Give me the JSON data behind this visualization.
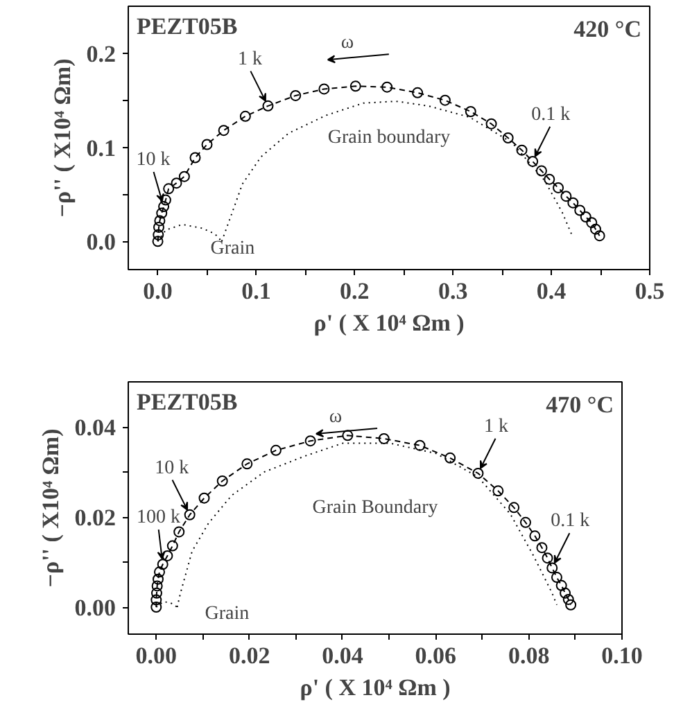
{
  "chart_data": [
    {
      "type": "line",
      "title": "PEZT05B",
      "subtitle": "420 °C",
      "xlabel": "ρ' ( X 10⁴ Ωm )",
      "ylabel": "−ρ'' ( X10⁴ Ωm)",
      "xlim": [
        -0.03,
        0.5
      ],
      "ylim": [
        -0.03,
        0.25
      ],
      "xticks": [
        {
          "value": 0,
          "label": "0.0"
        },
        {
          "value": 0.05,
          "label": null
        },
        0.1,
        {
          "value": 0.15,
          "label": null
        },
        0.2,
        {
          "value": 0.25,
          "label": null
        },
        0.3,
        {
          "value": 0.35,
          "label": null
        },
        0.4,
        {
          "value": 0.45,
          "label": null
        },
        0.5
      ],
      "yticks": [
        {
          "value": 0,
          "label": "0.0"
        },
        {
          "value": 0.05,
          "label": null
        },
        0.1,
        {
          "value": 0.15,
          "label": null
        },
        0.2
      ],
      "series": [
        {
          "color": "#000000",
          "marker": "circle",
          "line_style": "dashed",
          "x": [
            0,
            0.0005,
            0.001,
            0.002,
            0.004,
            0.006,
            0.008,
            0.011,
            0.019,
            0.027,
            0.038,
            0.05,
            0.067,
            0.089,
            0.112,
            0.14,
            0.169,
            0.201,
            0.233,
            0.264,
            0.292,
            0.318,
            0.339,
            0.356,
            0.37,
            0.381,
            0.39,
            0.398,
            0.407,
            0.415,
            0.422,
            0.429,
            0.435,
            0.441,
            0.445,
            0.449
          ],
          "values": [
            0,
            0.007,
            0.015,
            0.022,
            0.03,
            0.037,
            0.044,
            0.056,
            0.062,
            0.069,
            0.089,
            0.103,
            0.118,
            0.133,
            0.144,
            0.155,
            0.162,
            0.165,
            0.164,
            0.158,
            0.15,
            0.138,
            0.125,
            0.11,
            0.097,
            0.085,
            0.075,
            0.066,
            0.057,
            0.048,
            0.041,
            0.033,
            0.026,
            0.02,
            0.013,
            0.006
          ]
        },
        {
          "color": "#000000",
          "marker": "none",
          "line_style": "dotted",
          "x": [
            0,
            0.008,
            0.025,
            0.045,
            0.058,
            0.065
          ],
          "values": [
            0,
            0.012,
            0.018,
            0.014,
            0.008,
            0
          ]
        },
        {
          "color": "#000000",
          "marker": "none",
          "line_style": "dotted",
          "x": [
            0.065,
            0.074,
            0.086,
            0.105,
            0.133,
            0.171,
            0.209,
            0.242,
            0.275,
            0.317,
            0.36,
            0.393,
            0.411,
            0.422
          ],
          "values": [
            0,
            0.026,
            0.061,
            0.09,
            0.115,
            0.134,
            0.147,
            0.149,
            0.144,
            0.132,
            0.105,
            0.065,
            0.031,
            0.004
          ]
        }
      ],
      "annotations": [
        "ω",
        {
          "text": "1 k",
          "x": 0.112,
          "y": 0.144
        },
        {
          "text": "10 k",
          "x": 0.006,
          "y": 0.037
        },
        {
          "text": "0.1 k",
          "x": 0.381,
          "y": 0.085
        },
        "Grain boundary",
        "Grain"
      ]
    },
    {
      "type": "line",
      "title": "PEZT05B",
      "subtitle": "470 °C",
      "xlabel": "ρ' ( X 10⁴ Ωm )",
      "ylabel": "−ρ'' ( X10⁴ Ωm)",
      "xlim": [
        -0.006,
        0.1
      ],
      "ylim": [
        -0.006,
        0.05
      ],
      "xticks": [
        {
          "value": 0,
          "label": "0.00"
        },
        {
          "value": 0.01,
          "label": null
        },
        0.02,
        {
          "value": 0.03,
          "label": null
        },
        0.04,
        {
          "value": 0.05,
          "label": null
        },
        0.06,
        {
          "value": 0.07,
          "label": null
        },
        0.08,
        {
          "value": 0.09,
          "label": null
        },
        {
          "value": 0.1,
          "label": "0.10"
        }
      ],
      "yticks": [
        {
          "value": 0,
          "label": "0.00"
        },
        {
          "value": 0.01,
          "label": null
        },
        0.02,
        {
          "value": 0.03,
          "label": null
        },
        0.04
      ],
      "series": [
        {
          "color": "#000000",
          "marker": "circle",
          "line_style": "dashed",
          "x": [
            0,
            0,
            0.0001,
            0.0002,
            0.0004,
            0.0007,
            0.0014,
            0.0024,
            0.0035,
            0.0049,
            0.0072,
            0.0103,
            0.0142,
            0.0195,
            0.0257,
            0.0331,
            0.0411,
            0.0489,
            0.0566,
            0.0631,
            0.0691,
            0.0734,
            0.0768,
            0.0793,
            0.0813,
            0.0828,
            0.084,
            0.085,
            0.086,
            0.087,
            0.0878,
            0.0885,
            0.089
          ],
          "values": [
            0,
            0.0016,
            0.0031,
            0.0047,
            0.0062,
            0.0078,
            0.0095,
            0.0114,
            0.0136,
            0.0167,
            0.0205,
            0.0242,
            0.028,
            0.0318,
            0.0348,
            0.0369,
            0.0381,
            0.0374,
            0.0359,
            0.0331,
            0.0297,
            0.0258,
            0.0221,
            0.0188,
            0.0158,
            0.0132,
            0.0109,
            0.0087,
            0.0066,
            0.0048,
            0.0031,
            0.0017,
            0.0005
          ]
        },
        {
          "color": "#000000",
          "marker": "none",
          "line_style": "dotted",
          "x": [
            0,
            0.0015,
            0.003,
            0.0045
          ],
          "values": [
            0,
            0.0012,
            0.001,
            0
          ]
        },
        {
          "color": "#000000",
          "marker": "none",
          "line_style": "dotted",
          "x": [
            0.0045,
            0.0052,
            0.0077,
            0.0112,
            0.0162,
            0.0232,
            0.0321,
            0.0401,
            0.0501,
            0.0601,
            0.0691,
            0.076,
            0.081,
            0.085,
            0.086
          ],
          "values": [
            0,
            0.0031,
            0.0124,
            0.0186,
            0.0248,
            0.03,
            0.0336,
            0.0364,
            0.0364,
            0.0341,
            0.0289,
            0.0207,
            0.0114,
            0.0031,
            0.0005
          ]
        }
      ],
      "annotations": [
        "ω",
        {
          "text": "10 k",
          "x": 0.0072,
          "y": 0.0205
        },
        {
          "text": "100 k",
          "x": 0.0014,
          "y": 0.0095
        },
        {
          "text": "1 k",
          "x": 0.0691,
          "y": 0.0297
        },
        {
          "text": "0.1 k",
          "x": 0.085,
          "y": 0.0087
        },
        "Grain Boundary",
        "Grain"
      ]
    }
  ]
}
